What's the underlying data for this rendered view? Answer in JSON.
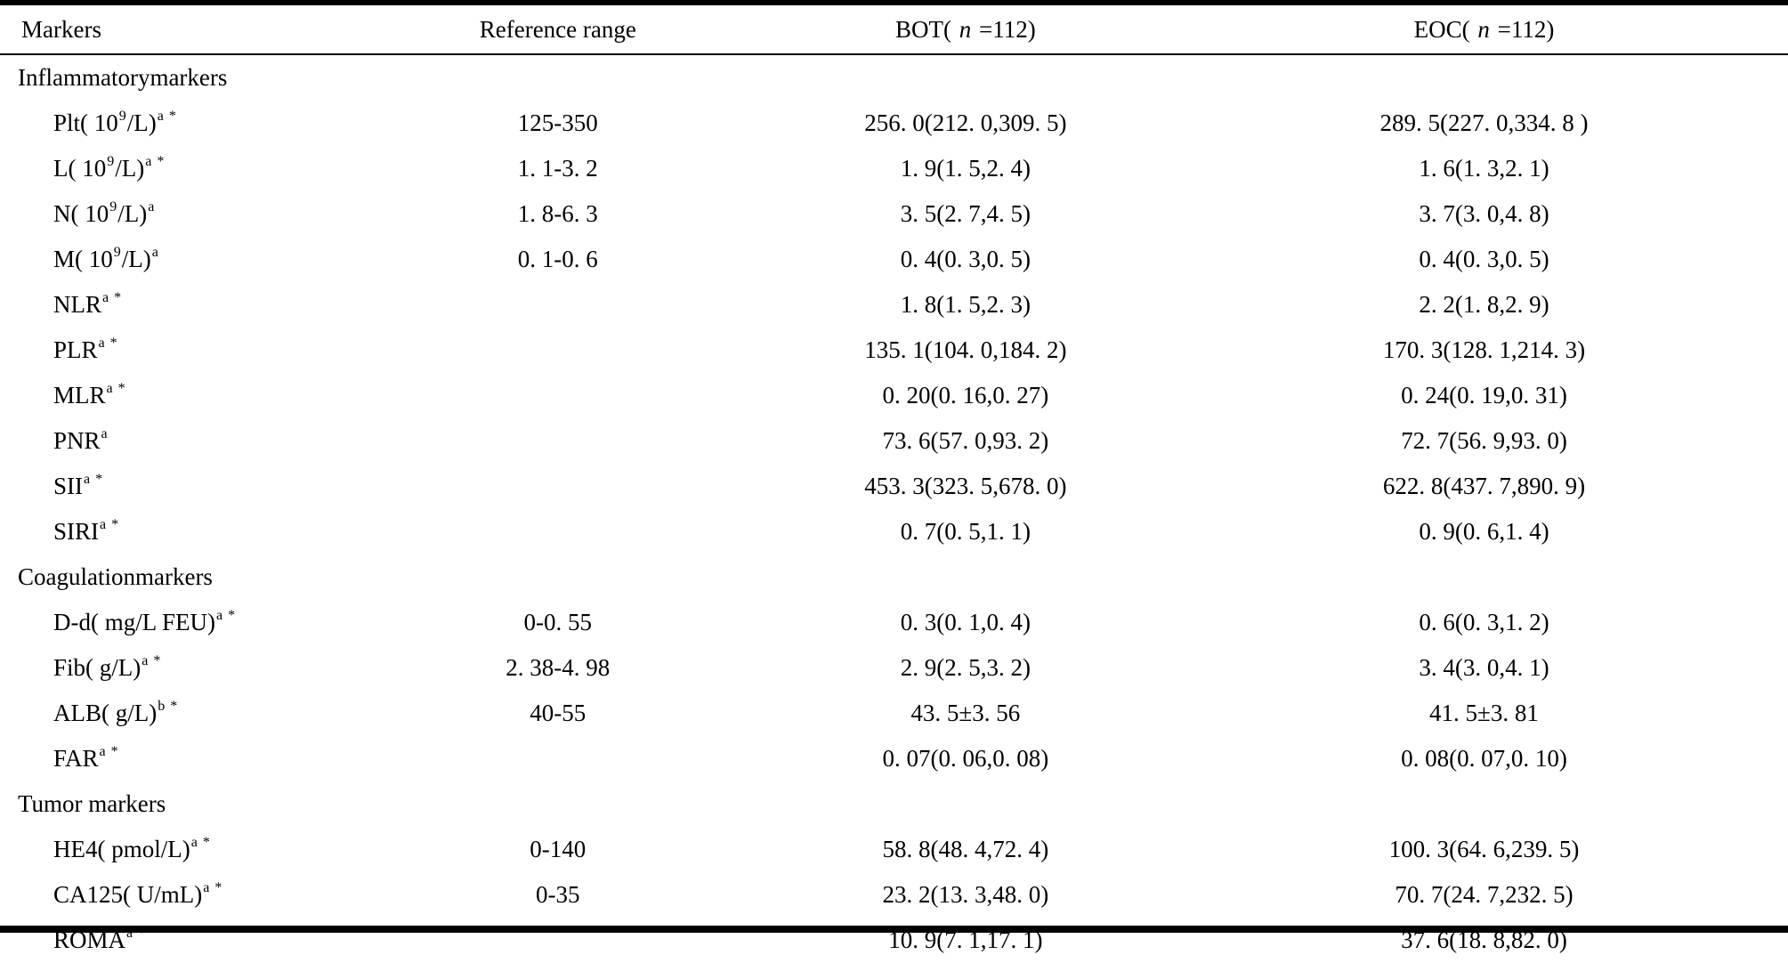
{
  "page": {
    "background": "#ffffff",
    "text_color": "#000000",
    "rule_color": "#000000"
  },
  "table": {
    "header": [
      {
        "align": "left",
        "parts": [
          [
            "t",
            "Markers"
          ]
        ]
      },
      {
        "align": "center",
        "parts": [
          [
            "t",
            "Reference range"
          ]
        ]
      },
      {
        "align": "center",
        "parts": [
          [
            "t",
            "BOT( "
          ],
          [
            "i",
            "n"
          ],
          [
            "t",
            " =112)"
          ]
        ]
      },
      {
        "align": "center",
        "parts": [
          [
            "t",
            "EOC( "
          ],
          [
            "i",
            "n"
          ],
          [
            "t",
            " =112)"
          ]
        ]
      }
    ],
    "rows": [
      {
        "section": "Inflammatorymarkers"
      },
      {
        "marker": [
          [
            "t",
            "Plt( 10"
          ],
          [
            "u",
            "9"
          ],
          [
            "t",
            "/L)"
          ],
          [
            "u",
            "a *"
          ]
        ],
        "ref": "125-350",
        "bot": "256. 0(212. 0,309. 5)",
        "eoc": "289. 5(227. 0,334. 8 )"
      },
      {
        "marker": [
          [
            "t",
            "L( 10"
          ],
          [
            "u",
            "9"
          ],
          [
            "t",
            "/L)"
          ],
          [
            "u",
            "a *"
          ]
        ],
        "ref": "1. 1-3. 2",
        "bot": "1. 9(1. 5,2. 4)",
        "eoc": "1. 6(1. 3,2. 1)"
      },
      {
        "marker": [
          [
            "t",
            "N( 10"
          ],
          [
            "u",
            "9"
          ],
          [
            "t",
            "/L)"
          ],
          [
            "u",
            "a"
          ]
        ],
        "ref": "1. 8-6. 3",
        "bot": "3. 5(2. 7,4. 5)",
        "eoc": "3. 7(3. 0,4. 8)"
      },
      {
        "marker": [
          [
            "t",
            "M( 10"
          ],
          [
            "u",
            "9"
          ],
          [
            "t",
            "/L)"
          ],
          [
            "u",
            "a"
          ]
        ],
        "ref": "0. 1-0. 6",
        "bot": "0. 4(0. 3,0. 5)",
        "eoc": "0. 4(0. 3,0. 5)"
      },
      {
        "marker": [
          [
            "t",
            "NLR"
          ],
          [
            "u",
            "a *"
          ]
        ],
        "ref": "",
        "bot": "1. 8(1. 5,2. 3)",
        "eoc": "2. 2(1. 8,2. 9)"
      },
      {
        "marker": [
          [
            "t",
            "PLR"
          ],
          [
            "u",
            "a *"
          ]
        ],
        "ref": "",
        "bot": "135. 1(104. 0,184. 2)",
        "eoc": "170. 3(128. 1,214. 3)"
      },
      {
        "marker": [
          [
            "t",
            "MLR"
          ],
          [
            "u",
            "a *"
          ]
        ],
        "ref": "",
        "bot": "0. 20(0. 16,0. 27)",
        "eoc": "0. 24(0. 19,0. 31)"
      },
      {
        "marker": [
          [
            "t",
            "PNR"
          ],
          [
            "u",
            "a"
          ]
        ],
        "ref": "",
        "bot": "73. 6(57. 0,93. 2)",
        "eoc": "72. 7(56. 9,93. 0)"
      },
      {
        "marker": [
          [
            "t",
            "SII"
          ],
          [
            "u",
            "a *"
          ]
        ],
        "ref": "",
        "bot": "453. 3(323. 5,678. 0)",
        "eoc": "622. 8(437. 7,890. 9)"
      },
      {
        "marker": [
          [
            "t",
            "SIRI"
          ],
          [
            "u",
            "a *"
          ]
        ],
        "ref": "",
        "bot": "0. 7(0. 5,1. 1)",
        "eoc": "0. 9(0. 6,1. 4)"
      },
      {
        "section": "Coagulationmarkers"
      },
      {
        "marker": [
          [
            "t",
            "D-d( mg/L FEU)"
          ],
          [
            "u",
            "a *"
          ]
        ],
        "ref": "0-0. 55",
        "bot": "0. 3(0. 1,0. 4)",
        "eoc": "0. 6(0. 3,1. 2)"
      },
      {
        "marker": [
          [
            "t",
            "Fib( g/L)"
          ],
          [
            "u",
            "a *"
          ]
        ],
        "ref": "2. 38-4. 98",
        "bot": "2. 9(2. 5,3. 2)",
        "eoc": "3. 4(3. 0,4. 1)"
      },
      {
        "marker": [
          [
            "t",
            "ALB( g/L)"
          ],
          [
            "u",
            "b *"
          ]
        ],
        "ref": "40-55",
        "bot": "43. 5±3. 56",
        "eoc": "41. 5±3. 81"
      },
      {
        "marker": [
          [
            "t",
            "FAR"
          ],
          [
            "u",
            "a *"
          ]
        ],
        "ref": "",
        "bot": "0. 07(0. 06,0. 08)",
        "eoc": "0. 08(0. 07,0. 10)"
      },
      {
        "section": "Tumor markers"
      },
      {
        "marker": [
          [
            "t",
            "HE4( pmol/L)"
          ],
          [
            "u",
            "a *"
          ]
        ],
        "ref": "0-140",
        "bot": "58. 8(48. 4,72. 4)",
        "eoc": "100. 3(64. 6,239. 5)"
      },
      {
        "marker": [
          [
            "t",
            "CA125( U/mL)"
          ],
          [
            "u",
            "a *"
          ]
        ],
        "ref": "0-35",
        "bot": "23. 2(13. 3,48. 0)",
        "eoc": "70. 7(24. 7,232. 5)"
      },
      {
        "marker": [
          [
            "t",
            "ROMA"
          ],
          [
            "u",
            "a *"
          ]
        ],
        "ref": "",
        "bot": "10. 9(7. 1,17. 1)",
        "eoc": "37. 6(18. 8,82. 0)"
      }
    ]
  }
}
